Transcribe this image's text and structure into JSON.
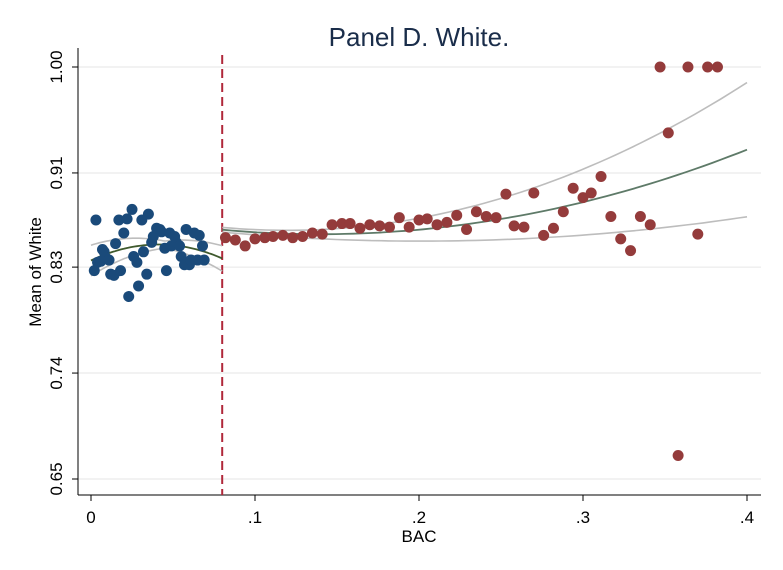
{
  "chart_data": {
    "type": "scatter",
    "title": "Panel D. White.",
    "xlabel": "BAC",
    "ylabel": "Mean of White",
    "xlim": [
      0,
      0.4
    ],
    "ylim": [
      0.65,
      1.0
    ],
    "x_ticks": [
      0,
      0.1,
      0.2,
      0.3,
      0.4
    ],
    "x_tick_labels": [
      "0",
      ".1",
      ".2",
      ".3",
      ".4"
    ],
    "y_ticks": [
      0.65,
      0.74,
      0.83,
      0.91,
      1.0
    ],
    "y_tick_labels": [
      "0.65",
      "0.74",
      "0.83",
      "0.91",
      "1.00"
    ],
    "grid": true,
    "cutoff": 0.08,
    "colors": {
      "below": "#1a4a7a",
      "above": "#943b3b",
      "cutoff": "#b0283a",
      "fit": "#5e7a68",
      "ci": "#bdbdbd",
      "fit_left": "#3f5a2e"
    },
    "series": [
      {
        "points": [
          [
            0.002,
            0.827
          ],
          [
            0.003,
            0.87
          ],
          [
            0.004,
            0.834
          ],
          [
            0.006,
            0.835
          ],
          [
            0.007,
            0.845
          ],
          [
            0.008,
            0.843
          ],
          [
            0.009,
            0.838
          ],
          [
            0.011,
            0.836
          ],
          [
            0.012,
            0.824
          ],
          [
            0.014,
            0.823
          ],
          [
            0.015,
            0.85
          ],
          [
            0.017,
            0.87
          ],
          [
            0.018,
            0.827
          ],
          [
            0.02,
            0.859
          ],
          [
            0.022,
            0.871
          ],
          [
            0.023,
            0.805
          ],
          [
            0.025,
            0.879
          ],
          [
            0.026,
            0.839
          ],
          [
            0.028,
            0.834
          ],
          [
            0.029,
            0.814
          ],
          [
            0.031,
            0.87
          ],
          [
            0.032,
            0.843
          ],
          [
            0.034,
            0.824
          ],
          [
            0.035,
            0.875
          ],
          [
            0.037,
            0.851
          ],
          [
            0.038,
            0.856
          ],
          [
            0.04,
            0.863
          ],
          [
            0.042,
            0.862
          ],
          [
            0.043,
            0.86
          ],
          [
            0.045,
            0.846
          ],
          [
            0.046,
            0.827
          ],
          [
            0.048,
            0.859
          ],
          [
            0.049,
            0.848
          ],
          [
            0.051,
            0.856
          ],
          [
            0.052,
            0.851
          ],
          [
            0.054,
            0.848
          ],
          [
            0.055,
            0.839
          ],
          [
            0.057,
            0.832
          ],
          [
            0.058,
            0.862
          ],
          [
            0.06,
            0.832
          ],
          [
            0.061,
            0.836
          ],
          [
            0.063,
            0.859
          ],
          [
            0.065,
            0.836
          ],
          [
            0.066,
            0.857
          ],
          [
            0.068,
            0.848
          ],
          [
            0.069,
            0.836
          ]
        ]
      },
      {
        "points": [
          [
            0.082,
            0.855
          ],
          [
            0.088,
            0.853
          ],
          [
            0.094,
            0.848
          ],
          [
            0.1,
            0.854
          ],
          [
            0.106,
            0.855
          ],
          [
            0.111,
            0.856
          ],
          [
            0.117,
            0.857
          ],
          [
            0.123,
            0.855
          ],
          [
            0.129,
            0.856
          ],
          [
            0.135,
            0.859
          ],
          [
            0.141,
            0.858
          ],
          [
            0.147,
            0.866
          ],
          [
            0.153,
            0.867
          ],
          [
            0.158,
            0.867
          ],
          [
            0.164,
            0.863
          ],
          [
            0.17,
            0.866
          ],
          [
            0.176,
            0.865
          ],
          [
            0.182,
            0.864
          ],
          [
            0.188,
            0.872
          ],
          [
            0.194,
            0.864
          ],
          [
            0.2,
            0.87
          ],
          [
            0.205,
            0.871
          ],
          [
            0.211,
            0.866
          ],
          [
            0.217,
            0.868
          ],
          [
            0.223,
            0.874
          ],
          [
            0.229,
            0.862
          ],
          [
            0.235,
            0.877
          ],
          [
            0.241,
            0.873
          ],
          [
            0.247,
            0.872
          ],
          [
            0.253,
            0.892
          ],
          [
            0.258,
            0.865
          ],
          [
            0.264,
            0.864
          ],
          [
            0.27,
            0.893
          ],
          [
            0.276,
            0.857
          ],
          [
            0.282,
            0.863
          ],
          [
            0.288,
            0.877
          ],
          [
            0.294,
            0.897
          ],
          [
            0.3,
            0.889
          ],
          [
            0.305,
            0.893
          ],
          [
            0.311,
            0.907
          ],
          [
            0.317,
            0.873
          ],
          [
            0.323,
            0.854
          ],
          [
            0.329,
            0.844
          ],
          [
            0.335,
            0.873
          ],
          [
            0.341,
            0.866
          ],
          [
            0.347,
            1.0
          ],
          [
            0.352,
            0.944
          ],
          [
            0.358,
            0.67
          ],
          [
            0.364,
            1.0
          ],
          [
            0.37,
            0.858
          ],
          [
            0.376,
            1.0
          ],
          [
            0.382,
            1.0
          ]
        ]
      }
    ]
  }
}
